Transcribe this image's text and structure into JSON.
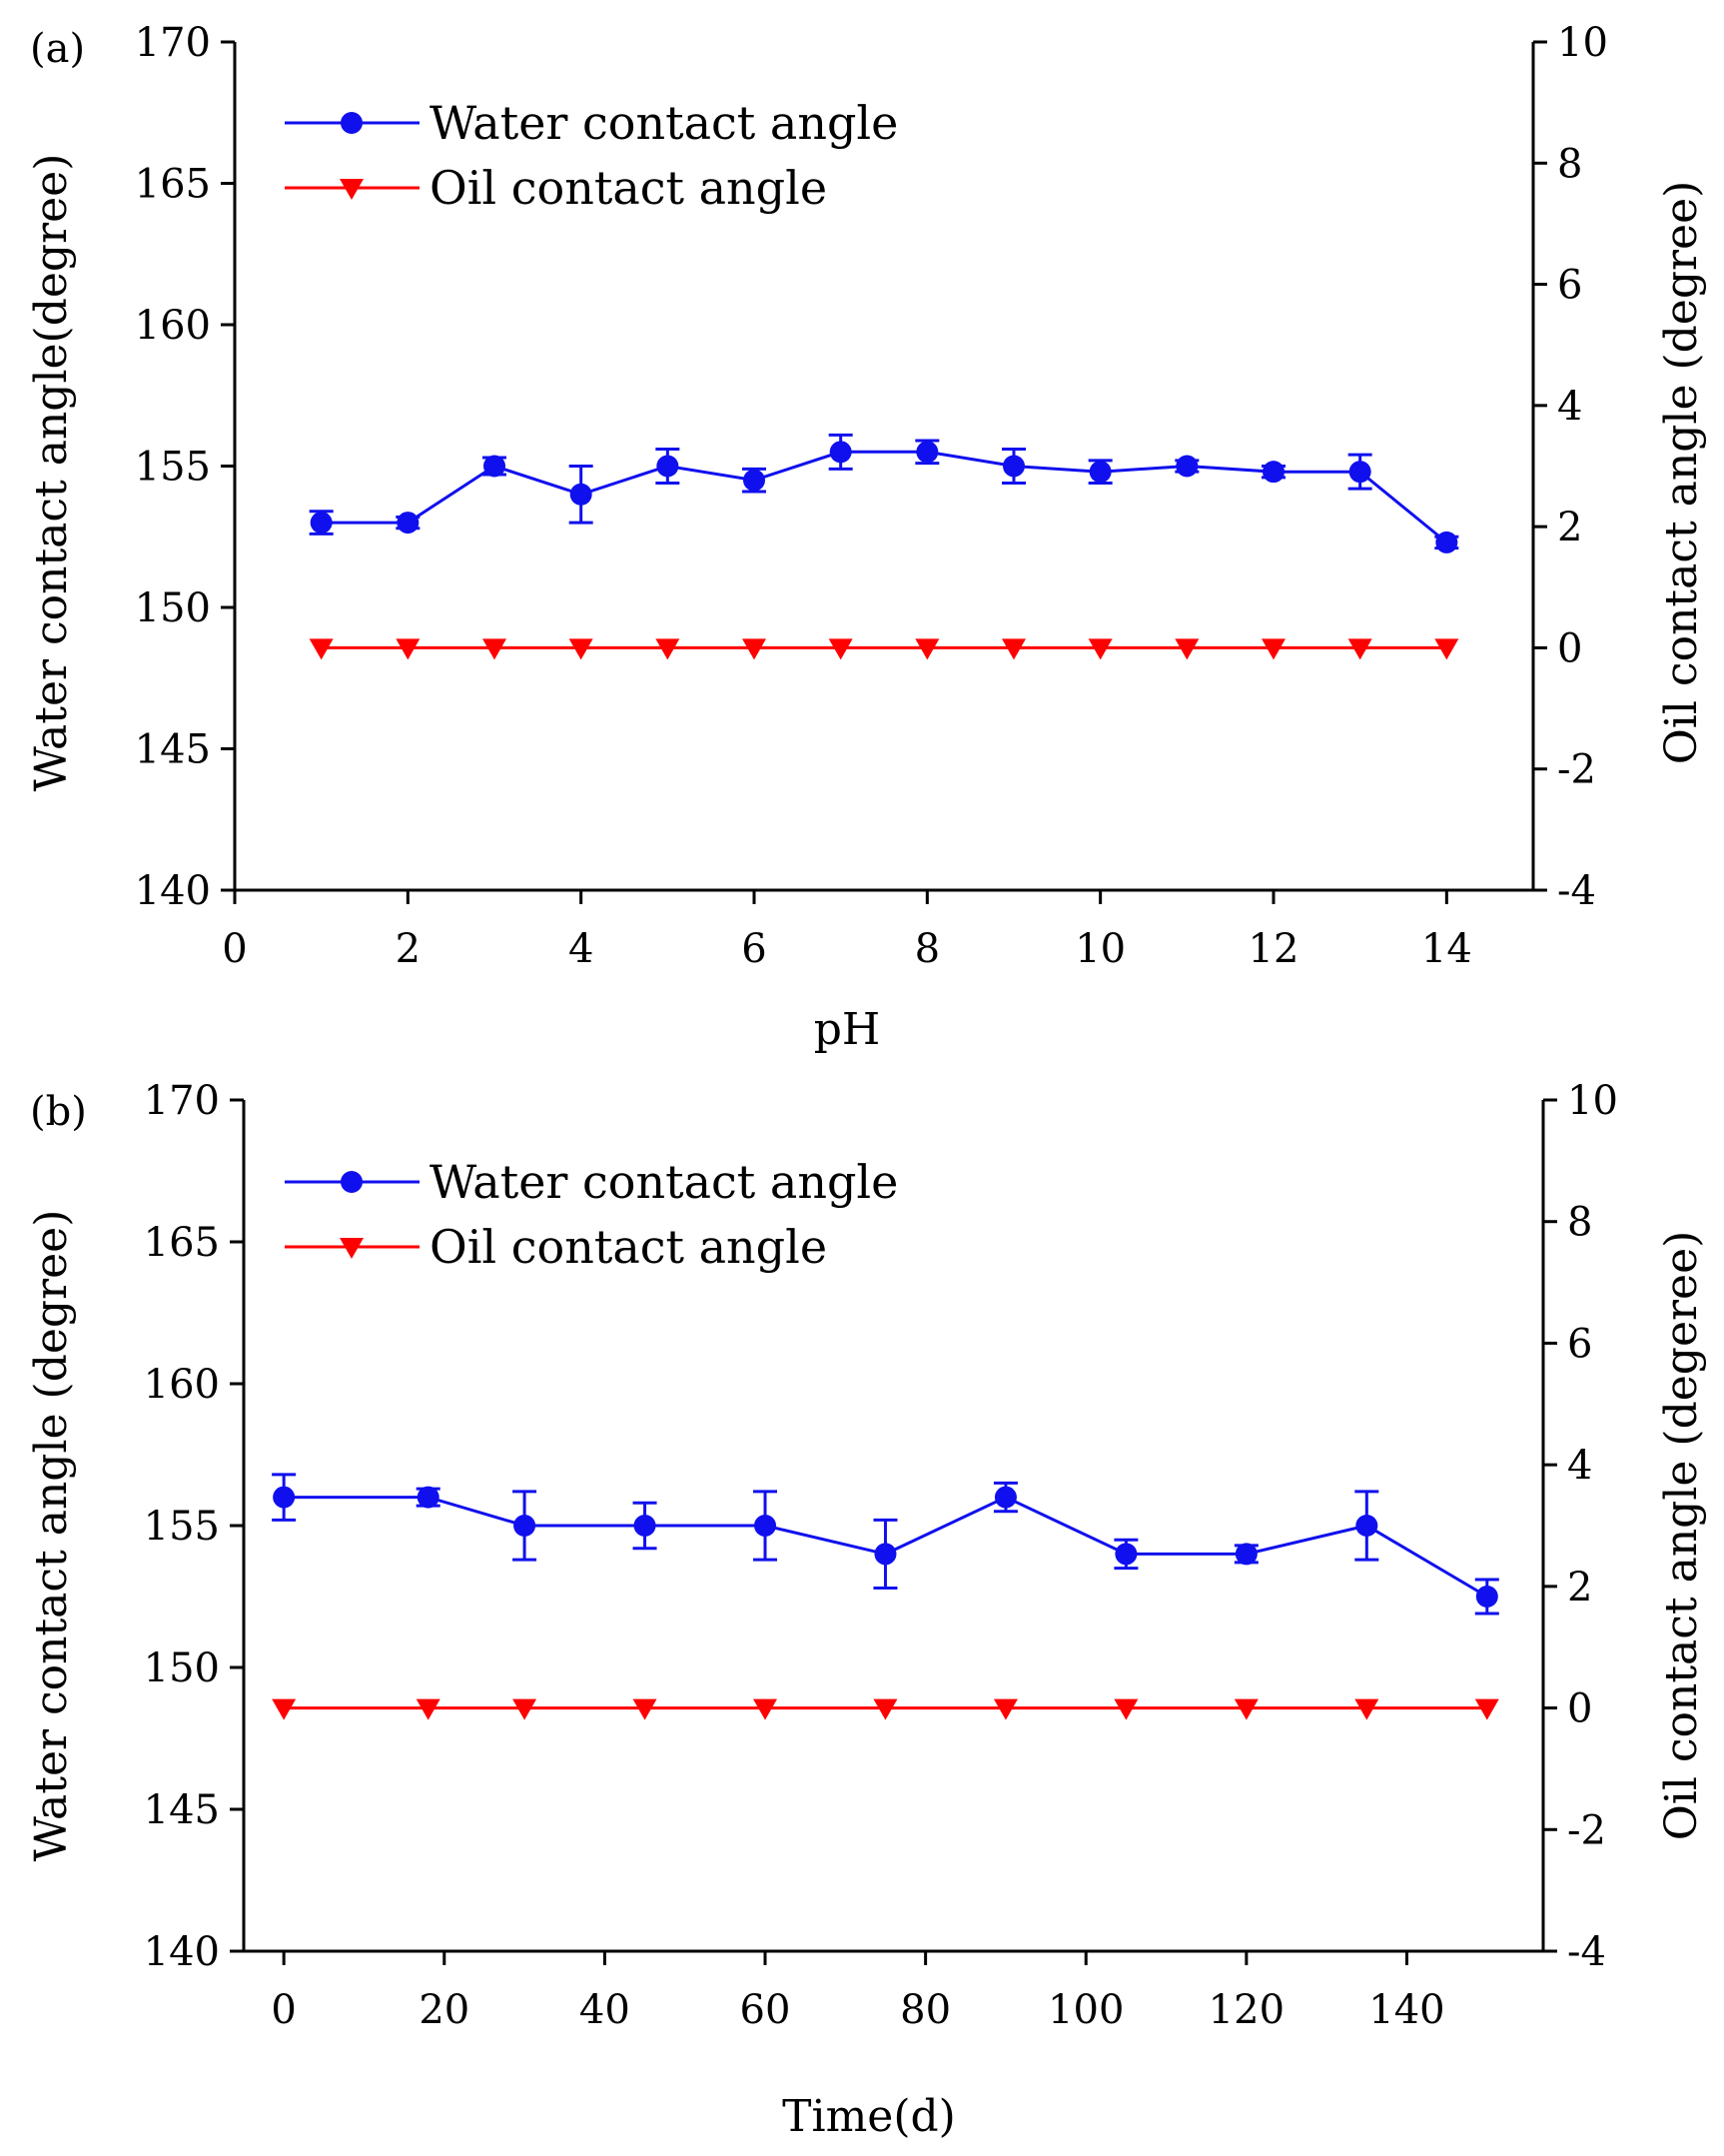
{
  "colors": {
    "water": "#1010ee",
    "oil": "#ff0000",
    "axis": "#000000"
  },
  "chart_data": [
    {
      "type": "line",
      "panel_label": "(a)",
      "xlabel": "pH",
      "ylabel_left": "Water contact angle(degree)",
      "ylabel_right": "Oil contact angle (degree)",
      "xlim": [
        0,
        15
      ],
      "ylim_left": [
        140,
        170
      ],
      "ylim_right": [
        -4,
        10
      ],
      "xticks": [
        0,
        2,
        4,
        6,
        8,
        10,
        12,
        14
      ],
      "yticks_left": [
        140,
        145,
        150,
        155,
        160,
        165,
        170
      ],
      "yticks_right": [
        -4,
        -2,
        0,
        2,
        4,
        6,
        8,
        10
      ],
      "legend": [
        {
          "label": "Water contact angle",
          "marker": "circle"
        },
        {
          "label": "Oil contact angle",
          "marker": "triangle-down"
        }
      ],
      "series": [
        {
          "name": "Water contact angle",
          "axis": "left",
          "marker": "circle",
          "x": [
            1,
            2,
            3,
            4,
            5,
            6,
            7,
            8,
            9,
            10,
            11,
            12,
            13,
            14
          ],
          "y": [
            153.0,
            153.0,
            155.0,
            154.0,
            155.0,
            154.5,
            155.5,
            155.5,
            155.0,
            154.8,
            155.0,
            154.8,
            154.8,
            152.3
          ],
          "err": [
            0.4,
            0.2,
            0.3,
            1.0,
            0.6,
            0.4,
            0.6,
            0.4,
            0.6,
            0.4,
            0.2,
            0.2,
            0.6,
            0.2
          ]
        },
        {
          "name": "Oil contact angle",
          "axis": "right",
          "marker": "triangle-down",
          "x": [
            1,
            2,
            3,
            4,
            5,
            6,
            7,
            8,
            9,
            10,
            11,
            12,
            13,
            14
          ],
          "y": [
            0,
            0,
            0,
            0,
            0,
            0,
            0,
            0,
            0,
            0,
            0,
            0,
            0,
            0
          ]
        }
      ]
    },
    {
      "type": "line",
      "panel_label": "(b)",
      "xlabel": "Time(d)",
      "ylabel_left": "Water contact angle (degree)",
      "ylabel_right": "Oil contact angle (degeree)",
      "xlim": [
        -5,
        157
      ],
      "ylim_left": [
        140,
        170
      ],
      "ylim_right": [
        -4,
        10
      ],
      "xticks": [
        0,
        20,
        40,
        60,
        80,
        100,
        120,
        140
      ],
      "yticks_left": [
        140,
        145,
        150,
        155,
        160,
        165,
        170
      ],
      "yticks_right": [
        -4,
        -2,
        0,
        2,
        4,
        6,
        8,
        10
      ],
      "legend": [
        {
          "label": "Water contact angle",
          "marker": "circle"
        },
        {
          "label": "Oil contact angle",
          "marker": "triangle-down"
        }
      ],
      "series": [
        {
          "name": "Water contact angle",
          "axis": "left",
          "marker": "circle",
          "x": [
            0,
            18,
            30,
            45,
            60,
            75,
            90,
            105,
            120,
            135,
            150
          ],
          "y": [
            156.0,
            156.0,
            155.0,
            155.0,
            155.0,
            154.0,
            156.0,
            154.0,
            154.0,
            155.0,
            152.5
          ],
          "err": [
            0.8,
            0.3,
            1.2,
            0.8,
            1.2,
            1.2,
            0.5,
            0.5,
            0.3,
            1.2,
            0.6
          ]
        },
        {
          "name": "Oil contact angle",
          "axis": "right",
          "marker": "triangle-down",
          "x": [
            0,
            18,
            30,
            45,
            60,
            75,
            90,
            105,
            120,
            135,
            150
          ],
          "y": [
            0,
            0,
            0,
            0,
            0,
            0,
            0,
            0,
            0,
            0,
            0
          ]
        }
      ]
    }
  ]
}
